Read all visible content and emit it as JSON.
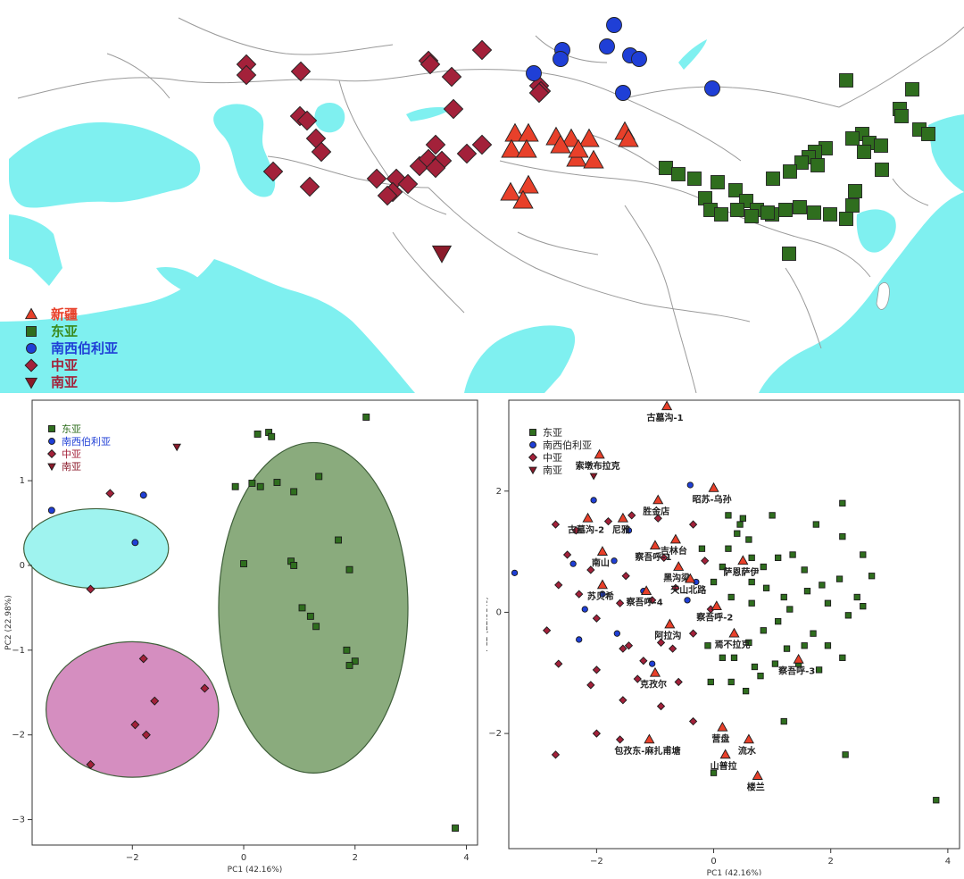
{
  "colors": {
    "xinjiang": "#e8402a",
    "east_asia": "#2f6e1e",
    "s_siberia": "#1f3fd6",
    "central_asia": "#a3213a",
    "south_asia": "#8b1a2a",
    "sea": "#7ff0f0",
    "land": "#ffffff",
    "border": "#999999",
    "ellipse_green": "#8aab7d",
    "ellipse_cyan": "#9ff3ef",
    "ellipse_pink": "#d58ec0"
  },
  "map": {
    "legend": [
      {
        "label": "新疆",
        "shape": "triangle-up",
        "color": "#e8402a",
        "text_color": "#e8402a"
      },
      {
        "label": "东亚",
        "shape": "square",
        "color": "#2f6e1e",
        "text_color": "#3a8a1e"
      },
      {
        "label": "南西伯利亚",
        "shape": "circle",
        "color": "#1f3fd6",
        "text_color": "#1f3fd6"
      },
      {
        "label": "中亚",
        "shape": "diamond",
        "color": "#a3213a",
        "text_color": "#a3213a"
      },
      {
        "label": "南亚",
        "shape": "triangle-down",
        "color": "#8b1a2a",
        "text_color": "#a3213a"
      }
    ]
  },
  "chart_data": [
    {
      "type": "scatter",
      "title": "",
      "xlabel": "PC1 (42.16%)",
      "ylabel": "PC2 (22.98%)",
      "xlim": [
        -3.8,
        4.2
      ],
      "ylim": [
        -3.3,
        1.95
      ],
      "xticks": [
        -2,
        0,
        2,
        4
      ],
      "yticks": [
        -3,
        -2,
        -1,
        0,
        1
      ],
      "legend": [
        {
          "label": "东亚",
          "shape": "square",
          "color": "#2f6e1e"
        },
        {
          "label": "南西伯利亚",
          "shape": "circle",
          "color": "#1f3fd6"
        },
        {
          "label": "中亚",
          "shape": "diamond",
          "color": "#a3213a"
        },
        {
          "label": "南亚",
          "shape": "triangle-down",
          "color": "#8b1a2a"
        }
      ],
      "ellipses": [
        {
          "group": "南西伯利亚",
          "cx": -2.65,
          "cy": 0.2,
          "rx": 1.3,
          "ry": 0.47,
          "color": "#9ff3ef"
        },
        {
          "group": "中亚",
          "cx": -2.0,
          "cy": -1.7,
          "rx": 1.55,
          "ry": 0.8,
          "color": "#d58ec0"
        },
        {
          "group": "东亚",
          "cx": 1.25,
          "cy": -0.5,
          "rx": 1.7,
          "ry": 1.95,
          "color": "#8aab7d"
        }
      ],
      "series": [
        {
          "name": "东亚",
          "shape": "square",
          "color": "#2f6e1e",
          "points": [
            [
              2.2,
              1.75
            ],
            [
              0.25,
              1.55
            ],
            [
              0.45,
              1.57
            ],
            [
              0.5,
              1.52
            ],
            [
              1.35,
              1.05
            ],
            [
              0.6,
              0.98
            ],
            [
              0.15,
              0.97
            ],
            [
              0.3,
              0.93
            ],
            [
              0.9,
              0.87
            ],
            [
              -0.15,
              0.93
            ],
            [
              1.7,
              0.3
            ],
            [
              0.0,
              0.02
            ],
            [
              0.85,
              0.05
            ],
            [
              0.9,
              0.0
            ],
            [
              1.9,
              -0.05
            ],
            [
              1.05,
              -0.5
            ],
            [
              1.2,
              -0.6
            ],
            [
              1.3,
              -0.72
            ],
            [
              1.85,
              -1.0
            ],
            [
              2.0,
              -1.13
            ],
            [
              1.9,
              -1.18
            ],
            [
              3.8,
              -3.1
            ]
          ]
        },
        {
          "name": "南西伯利亚",
          "shape": "circle",
          "color": "#1f3fd6",
          "points": [
            [
              -3.45,
              0.65
            ],
            [
              -1.8,
              0.83
            ],
            [
              -1.95,
              0.27
            ]
          ]
        },
        {
          "name": "中亚",
          "shape": "diamond",
          "color": "#a3213a",
          "points": [
            [
              -2.4,
              0.85
            ],
            [
              -2.75,
              -0.28
            ],
            [
              -1.8,
              -1.1
            ],
            [
              -0.7,
              -1.45
            ],
            [
              -1.6,
              -1.6
            ],
            [
              -1.95,
              -1.88
            ],
            [
              -1.75,
              -2.0
            ],
            [
              -2.75,
              -2.35
            ]
          ]
        },
        {
          "name": "南亚",
          "shape": "triangle-down",
          "color": "#8b1a2a",
          "points": [
            [
              -1.2,
              1.4
            ]
          ]
        }
      ]
    },
    {
      "type": "scatter",
      "title": "",
      "xlabel": "PC1 (42.16%)",
      "ylabel": "PC2 (22.98%)",
      "xlim": [
        -3.5,
        4.2
      ],
      "ylim": [
        -3.9,
        3.5
      ],
      "xticks": [
        -2,
        0,
        2,
        4
      ],
      "yticks": [
        -2,
        0,
        2
      ],
      "legend": [
        {
          "label": "东亚",
          "shape": "square",
          "color": "#2f6e1e"
        },
        {
          "label": "南西伯利亚",
          "shape": "circle",
          "color": "#1f3fd6"
        },
        {
          "label": "中亚",
          "shape": "diamond",
          "color": "#a3213a"
        },
        {
          "label": "南亚",
          "shape": "triangle-down",
          "color": "#8b1a2a"
        }
      ],
      "labeled_points": [
        {
          "label": "古墓沟-1",
          "x": -0.8,
          "y": 3.4
        },
        {
          "label": "索墩布拉克",
          "x": -1.95,
          "y": 2.6
        },
        {
          "label": "昭苏-乌孙",
          "x": 0.0,
          "y": 2.05
        },
        {
          "label": "胜金店",
          "x": -0.95,
          "y": 1.85
        },
        {
          "label": "古墓沟-2",
          "x": -2.15,
          "y": 1.55
        },
        {
          "label": "尼雅",
          "x": -1.55,
          "y": 1.55
        },
        {
          "label": "吉林台",
          "x": -0.65,
          "y": 1.2
        },
        {
          "label": "察吾呼-1",
          "x": -1.0,
          "y": 1.1
        },
        {
          "label": "南山",
          "x": -1.9,
          "y": 1.0
        },
        {
          "label": "萨恩萨伊",
          "x": 0.5,
          "y": 0.85
        },
        {
          "label": "黑沟梁",
          "x": -0.6,
          "y": 0.75
        },
        {
          "label": "天山北路",
          "x": -0.4,
          "y": 0.55
        },
        {
          "label": "苏贝希",
          "x": -1.9,
          "y": 0.45
        },
        {
          "label": "察吾呼-4",
          "x": -1.15,
          "y": 0.35
        },
        {
          "label": "察吾呼-2",
          "x": 0.05,
          "y": 0.1
        },
        {
          "label": "阿拉沟",
          "x": -0.75,
          "y": -0.2
        },
        {
          "label": "焉不拉克",
          "x": 0.35,
          "y": -0.35
        },
        {
          "label": "察吾呼-3",
          "x": 1.45,
          "y": -0.78
        },
        {
          "label": "克孜尔",
          "x": -1.0,
          "y": -1.0
        },
        {
          "label": "营盘",
          "x": 0.15,
          "y": -1.9
        },
        {
          "label": "流水",
          "x": 0.6,
          "y": -2.1
        },
        {
          "label": "包孜东-麻扎甫塘",
          "x": -1.1,
          "y": -2.1
        },
        {
          "label": "山普拉",
          "x": 0.2,
          "y": -2.35
        },
        {
          "label": "楼兰",
          "x": 0.75,
          "y": -2.7
        }
      ],
      "series": [
        {
          "name": "东亚",
          "shape": "square",
          "color": "#2f6e1e",
          "points": [
            [
              2.2,
              1.8
            ],
            [
              1.75,
              1.45
            ],
            [
              2.2,
              1.25
            ],
            [
              2.55,
              0.95
            ],
            [
              2.7,
              0.6
            ],
            [
              2.15,
              0.55
            ],
            [
              1.85,
              0.45
            ],
            [
              1.55,
              0.7
            ],
            [
              1.35,
              0.95
            ],
            [
              1.1,
              0.9
            ],
            [
              0.85,
              0.75
            ],
            [
              0.65,
              0.5
            ],
            [
              0.4,
              1.3
            ],
            [
              0.25,
              1.05
            ],
            [
              0.15,
              0.75
            ],
            [
              0.45,
              1.45
            ],
            [
              0.25,
              1.6
            ],
            [
              0.5,
              1.55
            ],
            [
              0.3,
              0.25
            ],
            [
              0.65,
              0.15
            ],
            [
              1.2,
              0.25
            ],
            [
              1.6,
              0.35
            ],
            [
              1.95,
              0.15
            ],
            [
              2.3,
              -0.05
            ],
            [
              2.55,
              0.1
            ],
            [
              1.1,
              -0.15
            ],
            [
              0.85,
              -0.3
            ],
            [
              0.6,
              -0.5
            ],
            [
              1.25,
              -0.6
            ],
            [
              1.55,
              -0.55
            ],
            [
              1.7,
              -0.35
            ],
            [
              1.95,
              -0.55
            ],
            [
              2.2,
              -0.75
            ],
            [
              1.8,
              -0.95
            ],
            [
              1.45,
              -0.85
            ],
            [
              1.05,
              -0.85
            ],
            [
              0.7,
              -0.9
            ],
            [
              0.35,
              -0.75
            ],
            [
              -0.1,
              -0.55
            ],
            [
              0.15,
              -0.75
            ],
            [
              -0.05,
              -1.15
            ],
            [
              0.3,
              -1.15
            ],
            [
              0.55,
              -1.3
            ],
            [
              0.8,
              -1.05
            ],
            [
              1.2,
              -1.8
            ],
            [
              0.0,
              -2.65
            ],
            [
              2.25,
              -2.35
            ],
            [
              3.8,
              -3.1
            ],
            [
              0.65,
              0.9
            ],
            [
              1.0,
              1.6
            ],
            [
              0.6,
              1.2
            ],
            [
              0.9,
              0.4
            ],
            [
              0.0,
              0.5
            ],
            [
              -0.2,
              1.05
            ],
            [
              1.3,
              0.05
            ],
            [
              2.45,
              0.25
            ]
          ]
        },
        {
          "name": "南西伯利亚",
          "shape": "circle",
          "color": "#1f3fd6",
          "points": [
            [
              -3.4,
              0.65
            ],
            [
              -2.05,
              1.85
            ],
            [
              -0.4,
              2.1
            ],
            [
              -1.45,
              1.35
            ],
            [
              -2.4,
              0.8
            ],
            [
              -1.7,
              0.85
            ],
            [
              -2.2,
              0.05
            ],
            [
              -1.9,
              0.3
            ],
            [
              -1.2,
              0.35
            ],
            [
              -0.3,
              0.5
            ],
            [
              -0.45,
              0.2
            ],
            [
              -2.3,
              -0.45
            ],
            [
              -1.65,
              -0.35
            ],
            [
              -1.05,
              -0.85
            ]
          ]
        },
        {
          "name": "中亚",
          "shape": "diamond",
          "color": "#a3213a",
          "points": [
            [
              -2.7,
              1.45
            ],
            [
              -2.35,
              1.35
            ],
            [
              -1.8,
              1.5
            ],
            [
              -1.4,
              1.6
            ],
            [
              -0.95,
              1.55
            ],
            [
              -0.35,
              1.45
            ],
            [
              -2.5,
              0.95
            ],
            [
              -2.1,
              0.7
            ],
            [
              -1.5,
              0.6
            ],
            [
              -0.85,
              0.9
            ],
            [
              -0.15,
              0.85
            ],
            [
              -2.65,
              0.45
            ],
            [
              -2.3,
              0.3
            ],
            [
              -1.6,
              0.15
            ],
            [
              -1.05,
              0.2
            ],
            [
              -0.65,
              0.4
            ],
            [
              -2.85,
              -0.3
            ],
            [
              -2.0,
              -0.1
            ],
            [
              -1.45,
              -0.55
            ],
            [
              -0.9,
              -0.5
            ],
            [
              -0.35,
              -0.35
            ],
            [
              -0.05,
              0.05
            ],
            [
              -2.65,
              -0.85
            ],
            [
              -2.0,
              -0.95
            ],
            [
              -1.55,
              -0.6
            ],
            [
              -1.2,
              -0.8
            ],
            [
              -0.6,
              -1.15
            ],
            [
              -2.1,
              -1.2
            ],
            [
              -1.55,
              -1.45
            ],
            [
              -0.9,
              -1.55
            ],
            [
              -0.35,
              -1.8
            ],
            [
              -2.0,
              -2.0
            ],
            [
              -1.6,
              -2.1
            ],
            [
              -2.7,
              -2.35
            ],
            [
              -1.3,
              -1.1
            ],
            [
              -0.7,
              -0.6
            ]
          ]
        },
        {
          "name": "南亚",
          "shape": "triangle-down",
          "color": "#8b1a2a",
          "points": [
            [
              -2.05,
              2.25
            ]
          ]
        }
      ]
    }
  ]
}
